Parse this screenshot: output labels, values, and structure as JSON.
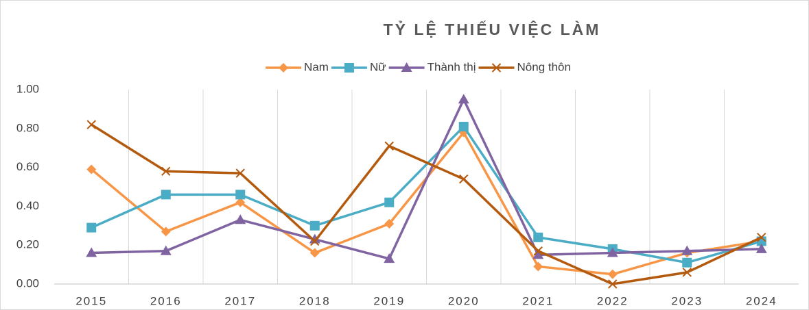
{
  "chart_data": {
    "type": "line",
    "title": "TỶ LỆ THIẾU VIỆC LÀM",
    "categories": [
      "2015",
      "2016",
      "2017",
      "2018",
      "2019",
      "2020",
      "2021",
      "2022",
      "2023",
      "2024"
    ],
    "series": [
      {
        "name": "Nam",
        "color": "#f79646",
        "marker": "diamond",
        "values": [
          0.59,
          0.27,
          0.42,
          0.16,
          0.31,
          0.78,
          0.09,
          0.05,
          0.16,
          0.22
        ]
      },
      {
        "name": "Nữ",
        "color": "#4bacc6",
        "marker": "square",
        "values": [
          0.29,
          0.46,
          0.46,
          0.3,
          0.42,
          0.81,
          0.24,
          0.18,
          0.11,
          0.22
        ]
      },
      {
        "name": "Thành thị",
        "color": "#8064a2",
        "marker": "triangle",
        "values": [
          0.16,
          0.17,
          0.33,
          0.23,
          0.13,
          0.95,
          0.15,
          0.16,
          0.17,
          0.18
        ]
      },
      {
        "name": "Nông thôn",
        "color": "#b35a0e",
        "marker": "x",
        "values": [
          0.82,
          0.58,
          0.57,
          0.22,
          0.71,
          0.54,
          0.17,
          0.0,
          0.06,
          0.24
        ]
      }
    ],
    "ylim": [
      0,
      1
    ],
    "yticks": [
      {
        "value": 0,
        "label": "0.00"
      },
      {
        "value": 0.2,
        "label": "0.20"
      },
      {
        "value": 0.4,
        "label": "0.40"
      },
      {
        "value": 0.6,
        "label": "0.60"
      },
      {
        "value": 0.8,
        "label": "0.80"
      },
      {
        "value": 1,
        "label": "1.00"
      }
    ],
    "grid": "x",
    "legend": "top"
  }
}
